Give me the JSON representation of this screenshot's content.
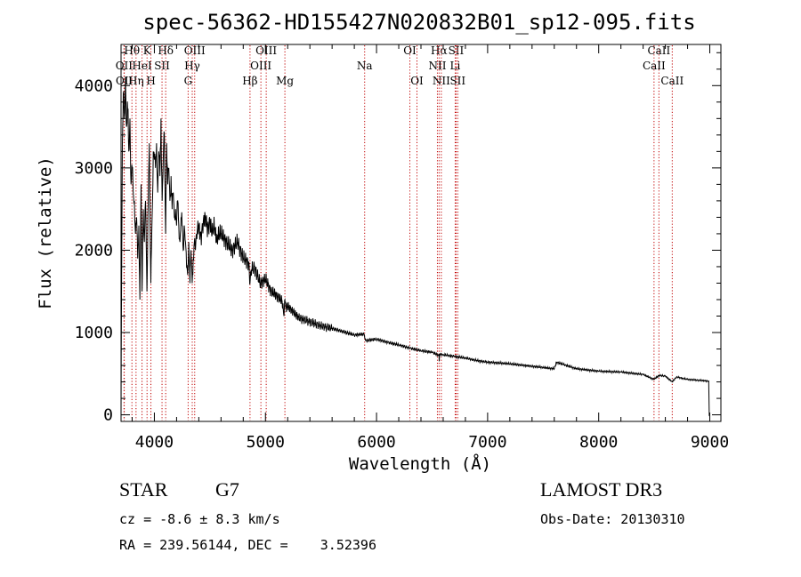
{
  "chart_data": {
    "type": "line",
    "title": "spec-56362-HD155427N020832B01_sp12-095.fits",
    "xlabel": "Wavelength (Å)",
    "ylabel": "Flux (relative)",
    "xlim": [
      3700,
      9100
    ],
    "ylim": [
      -80,
      4500
    ],
    "x_ticks": [
      4000,
      5000,
      6000,
      7000,
      8000,
      9000
    ],
    "y_ticks": [
      0,
      1000,
      2000,
      3000,
      4000
    ],
    "x_tick_labels": [
      "4000",
      "5000",
      "6000",
      "7000",
      "8000",
      "9000"
    ],
    "y_tick_labels": [
      "0",
      "1000",
      "2000",
      "3000",
      "4000"
    ],
    "series": [
      {
        "name": "spectrum",
        "x": [
          3700,
          3702,
          3705,
          3712,
          3720,
          3730,
          3740,
          3750,
          3760,
          3770,
          3780,
          3790,
          3800,
          3810,
          3820,
          3830,
          3840,
          3850,
          3860,
          3870,
          3880,
          3889,
          3900,
          3910,
          3920,
          3933,
          3945,
          3955,
          3968,
          3980,
          3990,
          4000,
          4010,
          4020,
          4030,
          4040,
          4050,
          4060,
          4070,
          4080,
          4090,
          4101,
          4110,
          4120,
          4130,
          4140,
          4150,
          4160,
          4170,
          4180,
          4190,
          4200,
          4210,
          4220,
          4230,
          4240,
          4250,
          4260,
          4270,
          4280,
          4290,
          4300,
          4310,
          4320,
          4330,
          4340,
          4350,
          4360,
          4370,
          4380,
          4400,
          4420,
          4440,
          4460,
          4480,
          4500,
          4520,
          4540,
          4560,
          4580,
          4600,
          4650,
          4700,
          4750,
          4800,
          4850,
          4861,
          4870,
          4900,
          4950,
          5000,
          5050,
          5100,
          5150,
          5167,
          5175,
          5183,
          5200,
          5250,
          5300,
          5400,
          5500,
          5600,
          5700,
          5800,
          5890,
          5900,
          6000,
          6100,
          6200,
          6300,
          6400,
          6500,
          6563,
          6564,
          6570,
          6600,
          6700,
          6800,
          6900,
          7000,
          7200,
          7400,
          7600,
          7620,
          7800,
          8000,
          8200,
          8400,
          8498,
          8542,
          8600,
          8662,
          8700,
          8800,
          8900,
          8990,
          8995,
          9000
        ],
        "y": [
          0,
          700,
          1600,
          3300,
          3900,
          3600,
          4100,
          3500,
          3700,
          3200,
          3600,
          2800,
          3000,
          2700,
          2600,
          2200,
          2400,
          1900,
          2300,
          1400,
          2800,
          1500,
          2500,
          2100,
          2600,
          1500,
          2600,
          3300,
          1600,
          2400,
          3200,
          3100,
          3000,
          3300,
          2700,
          3200,
          2900,
          3600,
          2600,
          3100,
          3400,
          2200,
          3300,
          2800,
          3000,
          2600,
          2900,
          2500,
          2700,
          2400,
          2500,
          2300,
          2600,
          2300,
          2100,
          2400,
          2300,
          2000,
          2300,
          2100,
          1800,
          1700,
          2100,
          1600,
          2000,
          1600,
          1900,
          2100,
          2000,
          2200,
          2300,
          2150,
          2350,
          2400,
          2250,
          2350,
          2200,
          2300,
          2100,
          2200,
          2200,
          2100,
          2000,
          2100,
          1900,
          1850,
          1600,
          1750,
          1800,
          1600,
          1650,
          1500,
          1450,
          1380,
          1200,
          1400,
          1300,
          1320,
          1250,
          1180,
          1130,
          1080,
          1050,
          1010,
          970,
          980,
          900,
          920,
          880,
          850,
          810,
          780,
          760,
          720,
          650,
          740,
          730,
          710,
          690,
          660,
          640,
          620,
          590,
          560,
          640,
          560,
          530,
          520,
          490,
          430,
          480,
          470,
          400,
          460,
          430,
          420,
          410,
          0,
          0
        ]
      }
    ],
    "line_markers": [
      {
        "name": "H theta",
        "label": "Hθ",
        "x": 3798,
        "row": 1
      },
      {
        "name": "OII",
        "label": "OII",
        "x": 3727,
        "row": 2
      },
      {
        "name": "OII",
        "label": "OII",
        "x": 3729,
        "row": 3
      },
      {
        "name": "K",
        "label": "K",
        "x": 3934,
        "row": 1
      },
      {
        "name": "HeI",
        "label": "HeI",
        "x": 3889,
        "row": 2
      },
      {
        "name": "H eta",
        "label": "Hη",
        "x": 3835,
        "row": 3
      },
      {
        "name": "H",
        "label": "H",
        "x": 3969,
        "row": 3
      },
      {
        "name": "SII",
        "label": "SII",
        "x": 4069,
        "row": 2
      },
      {
        "name": "H delta",
        "label": "Hδ",
        "x": 4102,
        "row": 1
      },
      {
        "name": "OIII",
        "label": "OIII",
        "x": 4363,
        "row": 1
      },
      {
        "name": "H gamma",
        "label": "Hγ",
        "x": 4341,
        "row": 2
      },
      {
        "name": "G",
        "label": "G",
        "x": 4304,
        "row": 3
      },
      {
        "name": "H beta",
        "label": "Hβ",
        "x": 4861,
        "row": 3
      },
      {
        "name": "OIII",
        "label": "OIII",
        "x": 5007,
        "row": 1
      },
      {
        "name": "OIII",
        "label": "OIII",
        "x": 4959,
        "row": 2
      },
      {
        "name": "Mg",
        "label": "Mg",
        "x": 5175,
        "row": 3
      },
      {
        "name": "Na",
        "label": "Na",
        "x": 5893,
        "row": 2
      },
      {
        "name": "OI",
        "label": "OI",
        "x": 6300,
        "row": 1
      },
      {
        "name": "OI",
        "label": "OI",
        "x": 6364,
        "row": 3
      },
      {
        "name": "H alpha",
        "label": "Hα",
        "x": 6563,
        "row": 1
      },
      {
        "name": "NII",
        "label": "NII",
        "x": 6548,
        "row": 2
      },
      {
        "name": "NII",
        "label": "NII",
        "x": 6583,
        "row": 3
      },
      {
        "name": "SII",
        "label": "SII",
        "x": 6716,
        "row": 1
      },
      {
        "name": "Li",
        "label": "Li",
        "x": 6708,
        "row": 2
      },
      {
        "name": "SII",
        "label": "SII",
        "x": 6731,
        "row": 3
      },
      {
        "name": "CaII",
        "label": "CaII",
        "x": 8542,
        "row": 1
      },
      {
        "name": "CaII",
        "label": "CaII",
        "x": 8498,
        "row": 2
      },
      {
        "name": "CaII",
        "label": "CaII",
        "x": 8662,
        "row": 3
      }
    ],
    "marker_color": "#c00000",
    "line_color": "#000000"
  },
  "info": {
    "object_class": "STAR",
    "subclass": "G7",
    "survey": "LAMOST DR3",
    "redshift_text": "cz = -8.6 ± 8.3 km/s",
    "obs_date_text": "Obs-Date: 20130310",
    "coords_text": "RA = 239.56144, DEC =    3.52396"
  }
}
